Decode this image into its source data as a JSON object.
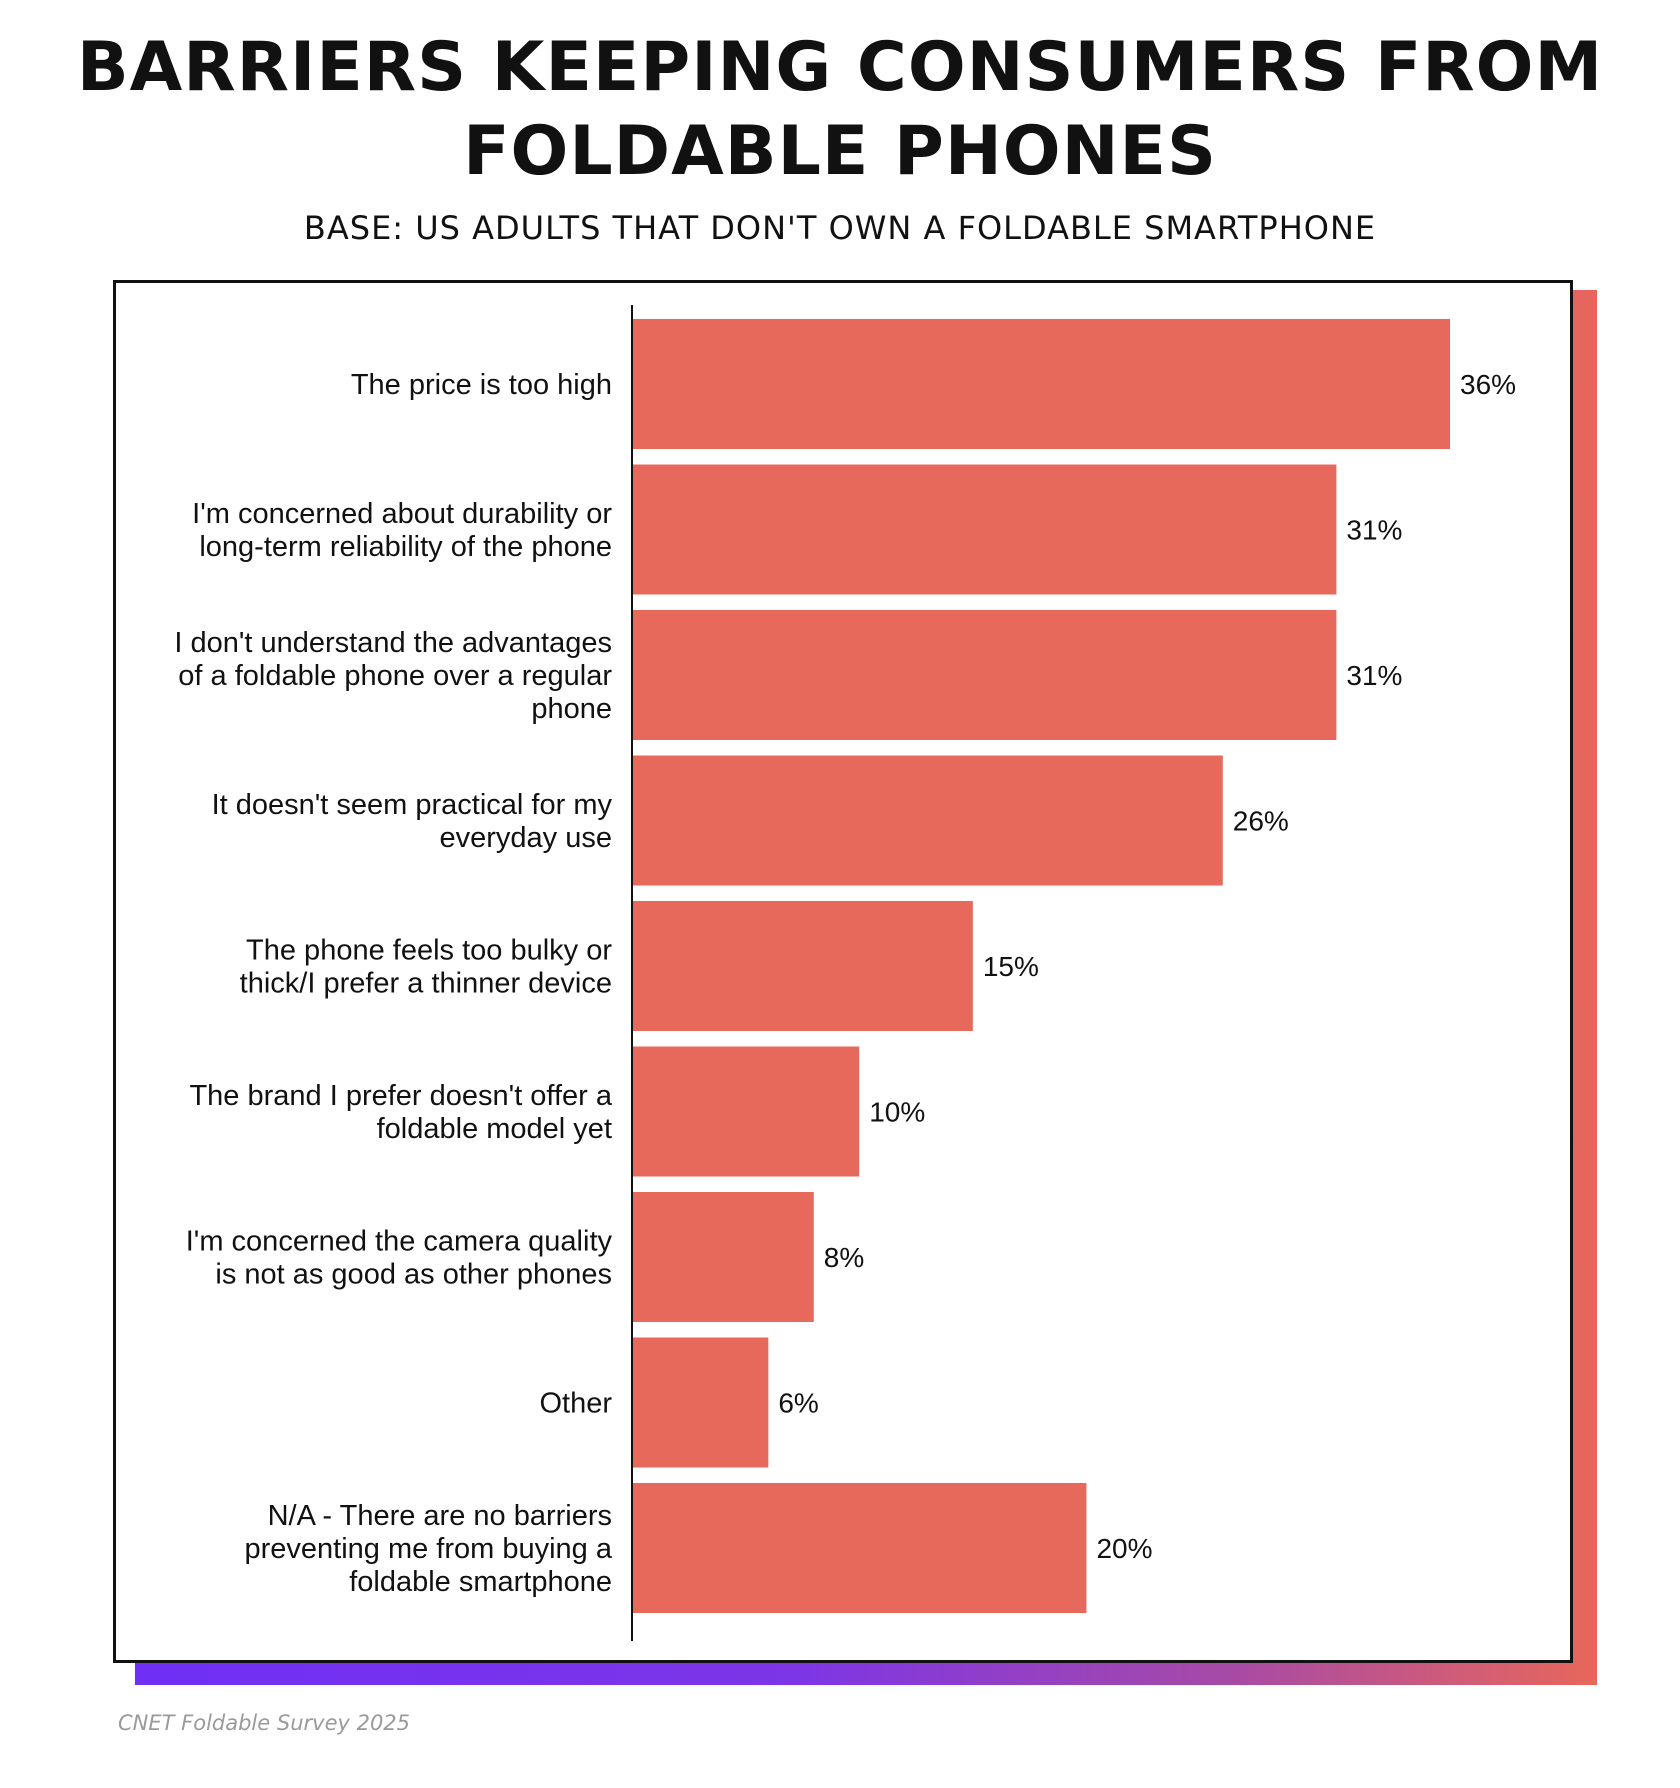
{
  "title_line1": "BARRIERS KEEPING CONSUMERS FROM",
  "title_line2": "FOLDABLE PHONES",
  "subtitle": "BASE: US ADULTS THAT DON'T OWN A FOLDABLE SMARTPHONE",
  "source": "CNET  Foldable Survey 2025",
  "colors": {
    "bar": "#e7695c",
    "text": "#111111",
    "axis": "#111111"
  },
  "chart_data": {
    "type": "bar",
    "orientation": "horizontal",
    "title": "BARRIERS KEEPING CONSUMERS FROM FOLDABLE PHONES",
    "subtitle": "BASE: US ADULTS THAT DON'T OWN A FOLDABLE SMARTPHONE",
    "categories": [
      [
        "The price is too high"
      ],
      [
        "I'm concerned about durability or",
        "long-term reliability of the phone"
      ],
      [
        "I don't understand the advantages",
        "of a foldable phone over a regular",
        "phone"
      ],
      [
        "It doesn't seem practical for my",
        "everyday use"
      ],
      [
        "The phone feels too bulky or",
        "thick/I prefer a thinner device"
      ],
      [
        "The brand I prefer doesn't offer a",
        "foldable model yet"
      ],
      [
        "I'm concerned the camera quality",
        "is not as good as other phones"
      ],
      [
        "Other"
      ],
      [
        "N/A - There are no barriers",
        "preventing me from buying a",
        "foldable smartphone"
      ]
    ],
    "values": [
      36,
      31,
      31,
      26,
      15,
      10,
      8,
      6,
      20
    ],
    "value_labels": [
      "36%",
      "31%",
      "31%",
      "26%",
      "15%",
      "10%",
      "8%",
      "6%",
      "20%"
    ],
    "unit": "%",
    "xlim": [
      0,
      36
    ],
    "grid": false,
    "legend": "none"
  }
}
